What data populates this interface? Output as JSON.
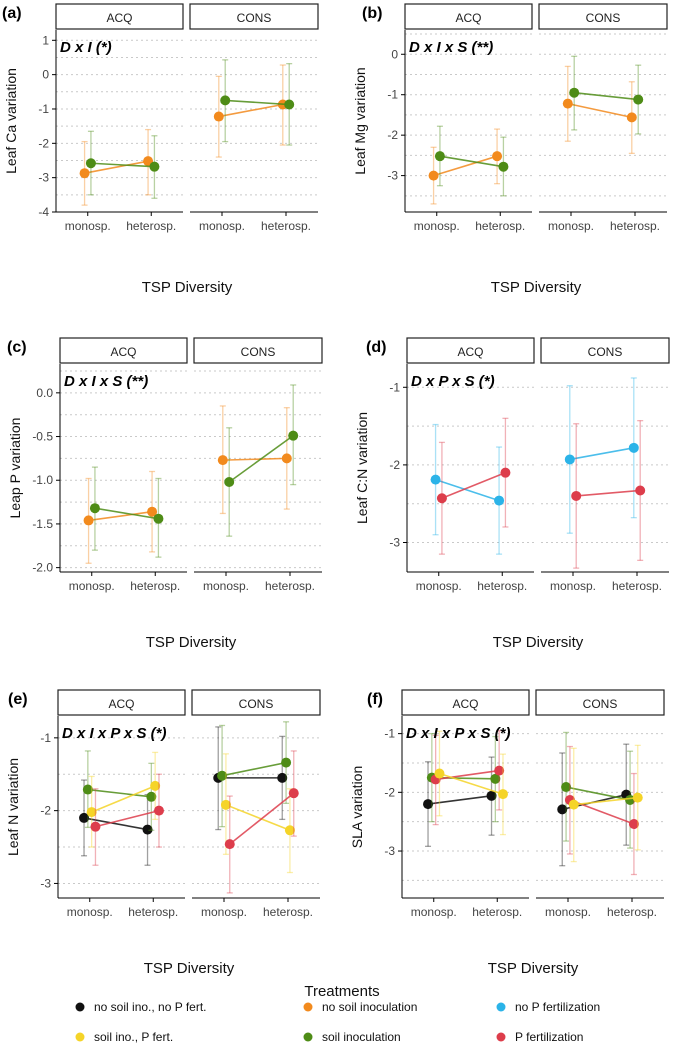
{
  "colors": {
    "no_soil_no_p": "#111111",
    "soil_p": "#f5d428",
    "no_soil": "#f28a1d",
    "soil": "#4e8c16",
    "no_p": "#2bb3e8",
    "p_fert": "#dd3d4b"
  },
  "chart_data": [
    {
      "label": "(a)",
      "type": "scatter",
      "ylabel": "Leaf Ca variation",
      "xlabel": "TSP Diversity",
      "facets": [
        "ACQ",
        "CONS"
      ],
      "categories": [
        "monosp.",
        "heterosp."
      ],
      "ylim": [
        -4,
        1.3
      ],
      "yticks": [
        1,
        0,
        -1,
        -2,
        -3,
        -4
      ],
      "yticklabels": [
        "1",
        "0",
        "-1",
        "-2",
        "-3",
        "-4"
      ],
      "annotation": "D x I (*)",
      "series": [
        {
          "name": "no soil inoculation",
          "color": "no_soil",
          "offset": -0.05,
          "ACQ": [
            [
              -2.87,
              -3.8,
              -1.95
            ],
            [
              -2.52,
              -3.5,
              -1.6
            ]
          ],
          "CONS": [
            [
              -1.22,
              -2.4,
              -0.05
            ],
            [
              -0.87,
              -2.05,
              0.28
            ]
          ]
        },
        {
          "name": "soil inoculation",
          "color": "soil",
          "offset": 0.05,
          "ACQ": [
            [
              -2.58,
              -3.5,
              -1.65
            ],
            [
              -2.68,
              -3.6,
              -1.78
            ]
          ],
          "CONS": [
            [
              -0.75,
              -1.95,
              0.43
            ],
            [
              -0.87,
              -2.05,
              0.32
            ]
          ]
        }
      ]
    },
    {
      "label": "(b)",
      "type": "scatter",
      "ylabel": "Leaf Mg variation",
      "xlabel": "TSP Diversity",
      "facets": [
        "ACQ",
        "CONS"
      ],
      "categories": [
        "monosp.",
        "heterosp."
      ],
      "ylim": [
        -3.9,
        0.6
      ],
      "yticks": [
        0,
        -1,
        -2,
        -3
      ],
      "yticklabels": [
        "0",
        "-1",
        "-2",
        "-3"
      ],
      "annotation": "D x I x S (**)",
      "series": [
        {
          "name": "no soil inoculation",
          "color": "no_soil",
          "offset": -0.05,
          "ACQ": [
            [
              -3.0,
              -3.7,
              -2.3
            ],
            [
              -2.52,
              -3.2,
              -1.85
            ]
          ],
          "CONS": [
            [
              -1.22,
              -2.15,
              -0.3
            ],
            [
              -1.56,
              -2.45,
              -0.68
            ]
          ]
        },
        {
          "name": "soil inoculation",
          "color": "soil",
          "offset": 0.05,
          "ACQ": [
            [
              -2.52,
              -3.25,
              -1.78
            ],
            [
              -2.78,
              -3.5,
              -2.05
            ]
          ],
          "CONS": [
            [
              -0.95,
              -1.87,
              -0.05
            ],
            [
              -1.12,
              -1.97,
              -0.27
            ]
          ]
        }
      ]
    },
    {
      "label": "(c)",
      "type": "scatter",
      "ylabel": "Leap P variation",
      "xlabel": "TSP Diversity",
      "facets": [
        "ACQ",
        "CONS"
      ],
      "categories": [
        "monosp.",
        "heterosp."
      ],
      "ylim": [
        -2.05,
        0.33
      ],
      "yticks": [
        0,
        -0.5,
        -1,
        -1.5,
        -2
      ],
      "yticklabels": [
        "0.0",
        "-0.5",
        "-1.0",
        "-1.5",
        "-2.0"
      ],
      "annotation": "D x I x S (**)",
      "series": [
        {
          "name": "no soil inoculation",
          "color": "no_soil",
          "offset": -0.05,
          "ACQ": [
            [
              -1.46,
              -1.95,
              -0.98
            ],
            [
              -1.36,
              -1.82,
              -0.9
            ]
          ],
          "CONS": [
            [
              -0.77,
              -1.38,
              -0.15
            ],
            [
              -0.75,
              -1.33,
              -0.17
            ]
          ]
        },
        {
          "name": "soil inoculation",
          "color": "soil",
          "offset": 0.05,
          "ACQ": [
            [
              -1.32,
              -1.8,
              -0.85
            ],
            [
              -1.44,
              -1.88,
              -0.98
            ]
          ],
          "CONS": [
            [
              -1.02,
              -1.64,
              -0.4
            ],
            [
              -0.49,
              -1.05,
              0.09
            ]
          ]
        }
      ]
    },
    {
      "label": "(d)",
      "type": "scatter",
      "ylabel": "Leaf C:N variation",
      "xlabel": "TSP Diversity",
      "facets": [
        "ACQ",
        "CONS"
      ],
      "categories": [
        "monosp.",
        "heterosp."
      ],
      "ylim": [
        -3.38,
        -0.7
      ],
      "yticks": [
        -1,
        -2,
        -3
      ],
      "yticklabels": [
        "-1",
        "-2",
        "-3"
      ],
      "annotation": "D x P x S (*)",
      "series": [
        {
          "name": "no P fertilization",
          "color": "no_p",
          "offset": -0.05,
          "ACQ": [
            [
              -2.19,
              -2.9,
              -1.48
            ],
            [
              -2.46,
              -3.15,
              -1.77
            ]
          ],
          "CONS": [
            [
              -1.93,
              -2.88,
              -0.98
            ],
            [
              -1.78,
              -2.68,
              -0.88
            ]
          ]
        },
        {
          "name": "P fertilization",
          "color": "p_fert",
          "offset": 0.05,
          "ACQ": [
            [
              -2.43,
              -3.15,
              -1.71
            ],
            [
              -2.1,
              -2.8,
              -1.4
            ]
          ],
          "CONS": [
            [
              -2.4,
              -3.33,
              -1.47
            ],
            [
              -2.33,
              -3.23,
              -1.43
            ]
          ]
        }
      ]
    },
    {
      "label": "(e)",
      "type": "scatter",
      "ylabel": "Leaf N variation",
      "xlabel": "TSP Diversity",
      "facets": [
        "ACQ",
        "CONS"
      ],
      "categories": [
        "monosp.",
        "heterosp."
      ],
      "ylim": [
        -3.2,
        -0.7
      ],
      "yticks": [
        -1,
        -2,
        -3
      ],
      "yticklabels": [
        "-1",
        "-2",
        "-3"
      ],
      "annotation": "D x I x P x S (*)",
      "series": [
        {
          "name": "no soil ino., no P fert.",
          "color": "no_soil_no_p",
          "offset": -0.09,
          "ACQ": [
            [
              -2.1,
              -2.62,
              -1.58
            ],
            [
              -2.26,
              -2.75,
              -1.78
            ]
          ],
          "CONS": [
            [
              -1.55,
              -2.26,
              -0.85
            ],
            [
              -1.55,
              -2.12,
              -0.98
            ]
          ]
        },
        {
          "name": "soil inoculation",
          "color": "soil",
          "offset": -0.03,
          "ACQ": [
            [
              -1.71,
              -2.23,
              -1.18
            ],
            [
              -1.81,
              -2.27,
              -1.35
            ]
          ],
          "CONS": [
            [
              -1.52,
              -2.22,
              -0.83
            ],
            [
              -1.34,
              -1.9,
              -0.78
            ]
          ]
        },
        {
          "name": "soil ino., P fert.",
          "color": "soil_p",
          "offset": 0.03,
          "ACQ": [
            [
              -2.02,
              -2.5,
              -1.53
            ],
            [
              -1.66,
              -2.12,
              -1.2
            ]
          ],
          "CONS": [
            [
              -1.92,
              -2.6,
              -1.22
            ],
            [
              -2.27,
              -2.85,
              -1.7
            ]
          ]
        },
        {
          "name": "P fertilization",
          "color": "p_fert",
          "offset": 0.09,
          "ACQ": [
            [
              -2.22,
              -2.75,
              -1.7
            ],
            [
              -2.0,
              -2.5,
              -1.5
            ]
          ],
          "CONS": [
            [
              -2.46,
              -3.13,
              -1.8
            ],
            [
              -1.76,
              -2.35,
              -1.18
            ]
          ]
        }
      ]
    },
    {
      "label": "(f)",
      "type": "scatter",
      "ylabel": "SLA variation",
      "xlabel": "TSP Diversity",
      "facets": [
        "ACQ",
        "CONS"
      ],
      "categories": [
        "monosp.",
        "heterosp."
      ],
      "ylim": [
        -3.8,
        -0.7
      ],
      "yticks": [
        -1,
        -2,
        -3
      ],
      "yticklabels": [
        "-1",
        "-2",
        "-3"
      ],
      "annotation": "D x I x P x S (*)",
      "series": [
        {
          "name": "no soil ino., no P fert.",
          "color": "no_soil_no_p",
          "offset": -0.09,
          "ACQ": [
            [
              -2.2,
              -2.92,
              -1.48
            ],
            [
              -2.06,
              -2.73,
              -1.4
            ]
          ],
          "CONS": [
            [
              -2.29,
              -3.25,
              -1.33
            ],
            [
              -2.04,
              -2.9,
              -1.18
            ]
          ]
        },
        {
          "name": "soil inoculation",
          "color": "soil",
          "offset": -0.03,
          "ACQ": [
            [
              -1.75,
              -2.5,
              -1.0
            ],
            [
              -1.77,
              -2.5,
              -1.05
            ]
          ],
          "CONS": [
            [
              -1.91,
              -2.83,
              -0.98
            ],
            [
              -2.13,
              -2.95,
              -1.3
            ]
          ]
        },
        {
          "name": "P fertilization",
          "color": "p_fert",
          "offset": 0.03,
          "ACQ": [
            [
              -1.78,
              -2.55,
              -1.03
            ],
            [
              -1.63,
              -2.3,
              -0.95
            ]
          ],
          "CONS": [
            [
              -2.13,
              -3.05,
              -1.22
            ],
            [
              -2.54,
              -3.4,
              -1.68
            ]
          ]
        },
        {
          "name": "soil ino., P fert.",
          "color": "soil_p",
          "offset": 0.09,
          "ACQ": [
            [
              -1.68,
              -2.4,
              -0.96
            ],
            [
              -2.03,
              -2.72,
              -1.35
            ]
          ],
          "CONS": [
            [
              -2.21,
              -3.18,
              -1.25
            ],
            [
              -2.09,
              -2.98,
              -1.2
            ]
          ]
        }
      ]
    }
  ],
  "legend": {
    "title": "Treatments",
    "items": [
      {
        "label": "no soil ino., no P fert.",
        "color": "no_soil_no_p"
      },
      {
        "label": "no soil inoculation",
        "color": "no_soil"
      },
      {
        "label": "no P fertilization",
        "color": "no_p"
      },
      {
        "label": "soil ino., P fert.",
        "color": "soil_p"
      },
      {
        "label": "soil inoculation",
        "color": "soil"
      },
      {
        "label": "P fertilization",
        "color": "p_fert"
      }
    ]
  }
}
